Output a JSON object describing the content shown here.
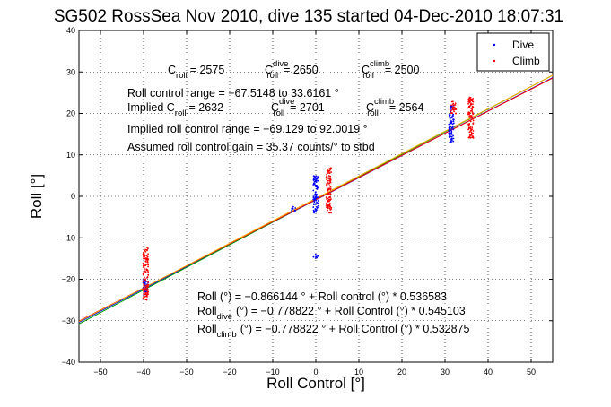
{
  "chart_data": {
    "type": "scatter",
    "title": "SG502 RossSea Nov 2010, dive 135 started 04-Dec-2010 18:07:31",
    "xlabel": "Roll Control [°]",
    "ylabel": "Roll [°]",
    "xlim": [
      -55,
      55
    ],
    "ylim": [
      -40,
      40
    ],
    "xticks": [
      -50,
      -40,
      -30,
      -20,
      -10,
      0,
      10,
      20,
      30,
      40,
      50
    ],
    "yticks": [
      -40,
      -30,
      -20,
      -10,
      0,
      10,
      20,
      30,
      40
    ],
    "xtick_labels": [
      "−50",
      "−40",
      "−30",
      "−20",
      "−10",
      "0",
      "10",
      "20",
      "30",
      "40",
      "50"
    ],
    "ytick_labels": [
      "−40",
      "−30",
      "−20",
      "−10",
      "0",
      "10",
      "20",
      "30",
      "40"
    ],
    "grid": true,
    "legend_position": "top-right",
    "series": [
      {
        "name": "Dive",
        "color": "#0000ff",
        "marker": "dot",
        "clusters": [
          {
            "x": 0,
            "y_range": [
              -4,
              5
            ]
          },
          {
            "x": 0,
            "y_range": [
              -15,
              -14
            ]
          },
          {
            "x": 31.5,
            "y_range": [
              13,
              22
            ]
          },
          {
            "x": -39.5,
            "y_range": [
              -24,
              -20
            ]
          },
          {
            "x": -5,
            "y_range": [
              -3.5,
              -2.5
            ]
          }
        ]
      },
      {
        "name": "Climb",
        "color": "#ff0000",
        "marker": "dot",
        "clusters": [
          {
            "x": 3,
            "y_range": [
              -4,
              7
            ]
          },
          {
            "x": 36,
            "y_range": [
              14,
              24
            ]
          },
          {
            "x": -39.5,
            "y_range": [
              -25,
              -12
            ]
          },
          {
            "x": 32,
            "y_range": [
              20,
              23
            ]
          }
        ]
      }
    ],
    "fit_lines": [
      {
        "intercept": -0.866144,
        "slope": 0.536583,
        "color": "#0000ff"
      },
      {
        "intercept": -0.778822,
        "slope": 0.545103,
        "color": "#00a000"
      },
      {
        "intercept": -0.778822,
        "slope": 0.532875,
        "color": "#ff0000"
      },
      {
        "intercept": -0.5,
        "slope": 0.54,
        "color": "#ffaa00"
      }
    ],
    "annotations": {
      "c_roll": {
        "base": "C",
        "sub": "roll",
        "value": "= 2575"
      },
      "c_roll_dive": {
        "base": "C",
        "sup": "dive",
        "sub": "roll",
        "value": "= 2650"
      },
      "c_roll_climb": {
        "base": "C",
        "sup": "climb",
        "sub": "roll",
        "value": "= 2500"
      },
      "roll_control_range": "Roll control range = −67.5148 to 33.6161 °",
      "implied_c_roll": {
        "prefix": "Implied C",
        "sub": "roll",
        "value": "= 2632"
      },
      "implied_c_roll_dive": {
        "base": "C",
        "sup": "dive",
        "sub": "roll",
        "value": "= 2701"
      },
      "implied_c_roll_climb": {
        "base": "C",
        "sup": "climb",
        "sub": "roll",
        "value": "= 2564"
      },
      "implied_range": "Implied roll control range = −69.129 to 92.0019 °",
      "gain": "Assumed roll control gain = 35.37 counts/° to stbd",
      "fit_all": "Roll (°) = −0.866144 ° + Roll control (°) * 0.536583",
      "fit_dive": {
        "base": "Roll",
        "sub": "dive",
        "text": "(°) = −0.778822 ° + Roll Control (°) * 0.545103"
      },
      "fit_climb": {
        "base": "Roll",
        "sub": "climb",
        "text": "(°) = −0.778822 ° + Roll Control (°) * 0.532875"
      }
    }
  }
}
